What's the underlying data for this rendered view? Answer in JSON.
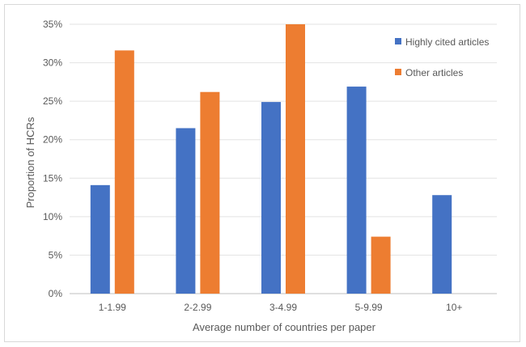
{
  "chart_data": {
    "type": "bar",
    "title": "",
    "xlabel": "Average number of countries per paper",
    "ylabel": "Proportion of HCRs",
    "categories": [
      "1-1.99",
      "2-2.99",
      "3-4.99",
      "5-9.99",
      "10+"
    ],
    "ylim": [
      0,
      35
    ],
    "yticks": [
      "0%",
      "5%",
      "10%",
      "15%",
      "20%",
      "25%",
      "30%",
      "35%"
    ],
    "grid": true,
    "legend_position": "top-right",
    "series": [
      {
        "name": "Highly cited articles",
        "color": "#4472c4",
        "values": [
          14.1,
          21.5,
          24.9,
          26.9,
          12.8
        ]
      },
      {
        "name": "Other articles",
        "color": "#ed7d31",
        "values": [
          31.6,
          26.2,
          35.0,
          7.4,
          0
        ]
      }
    ]
  }
}
